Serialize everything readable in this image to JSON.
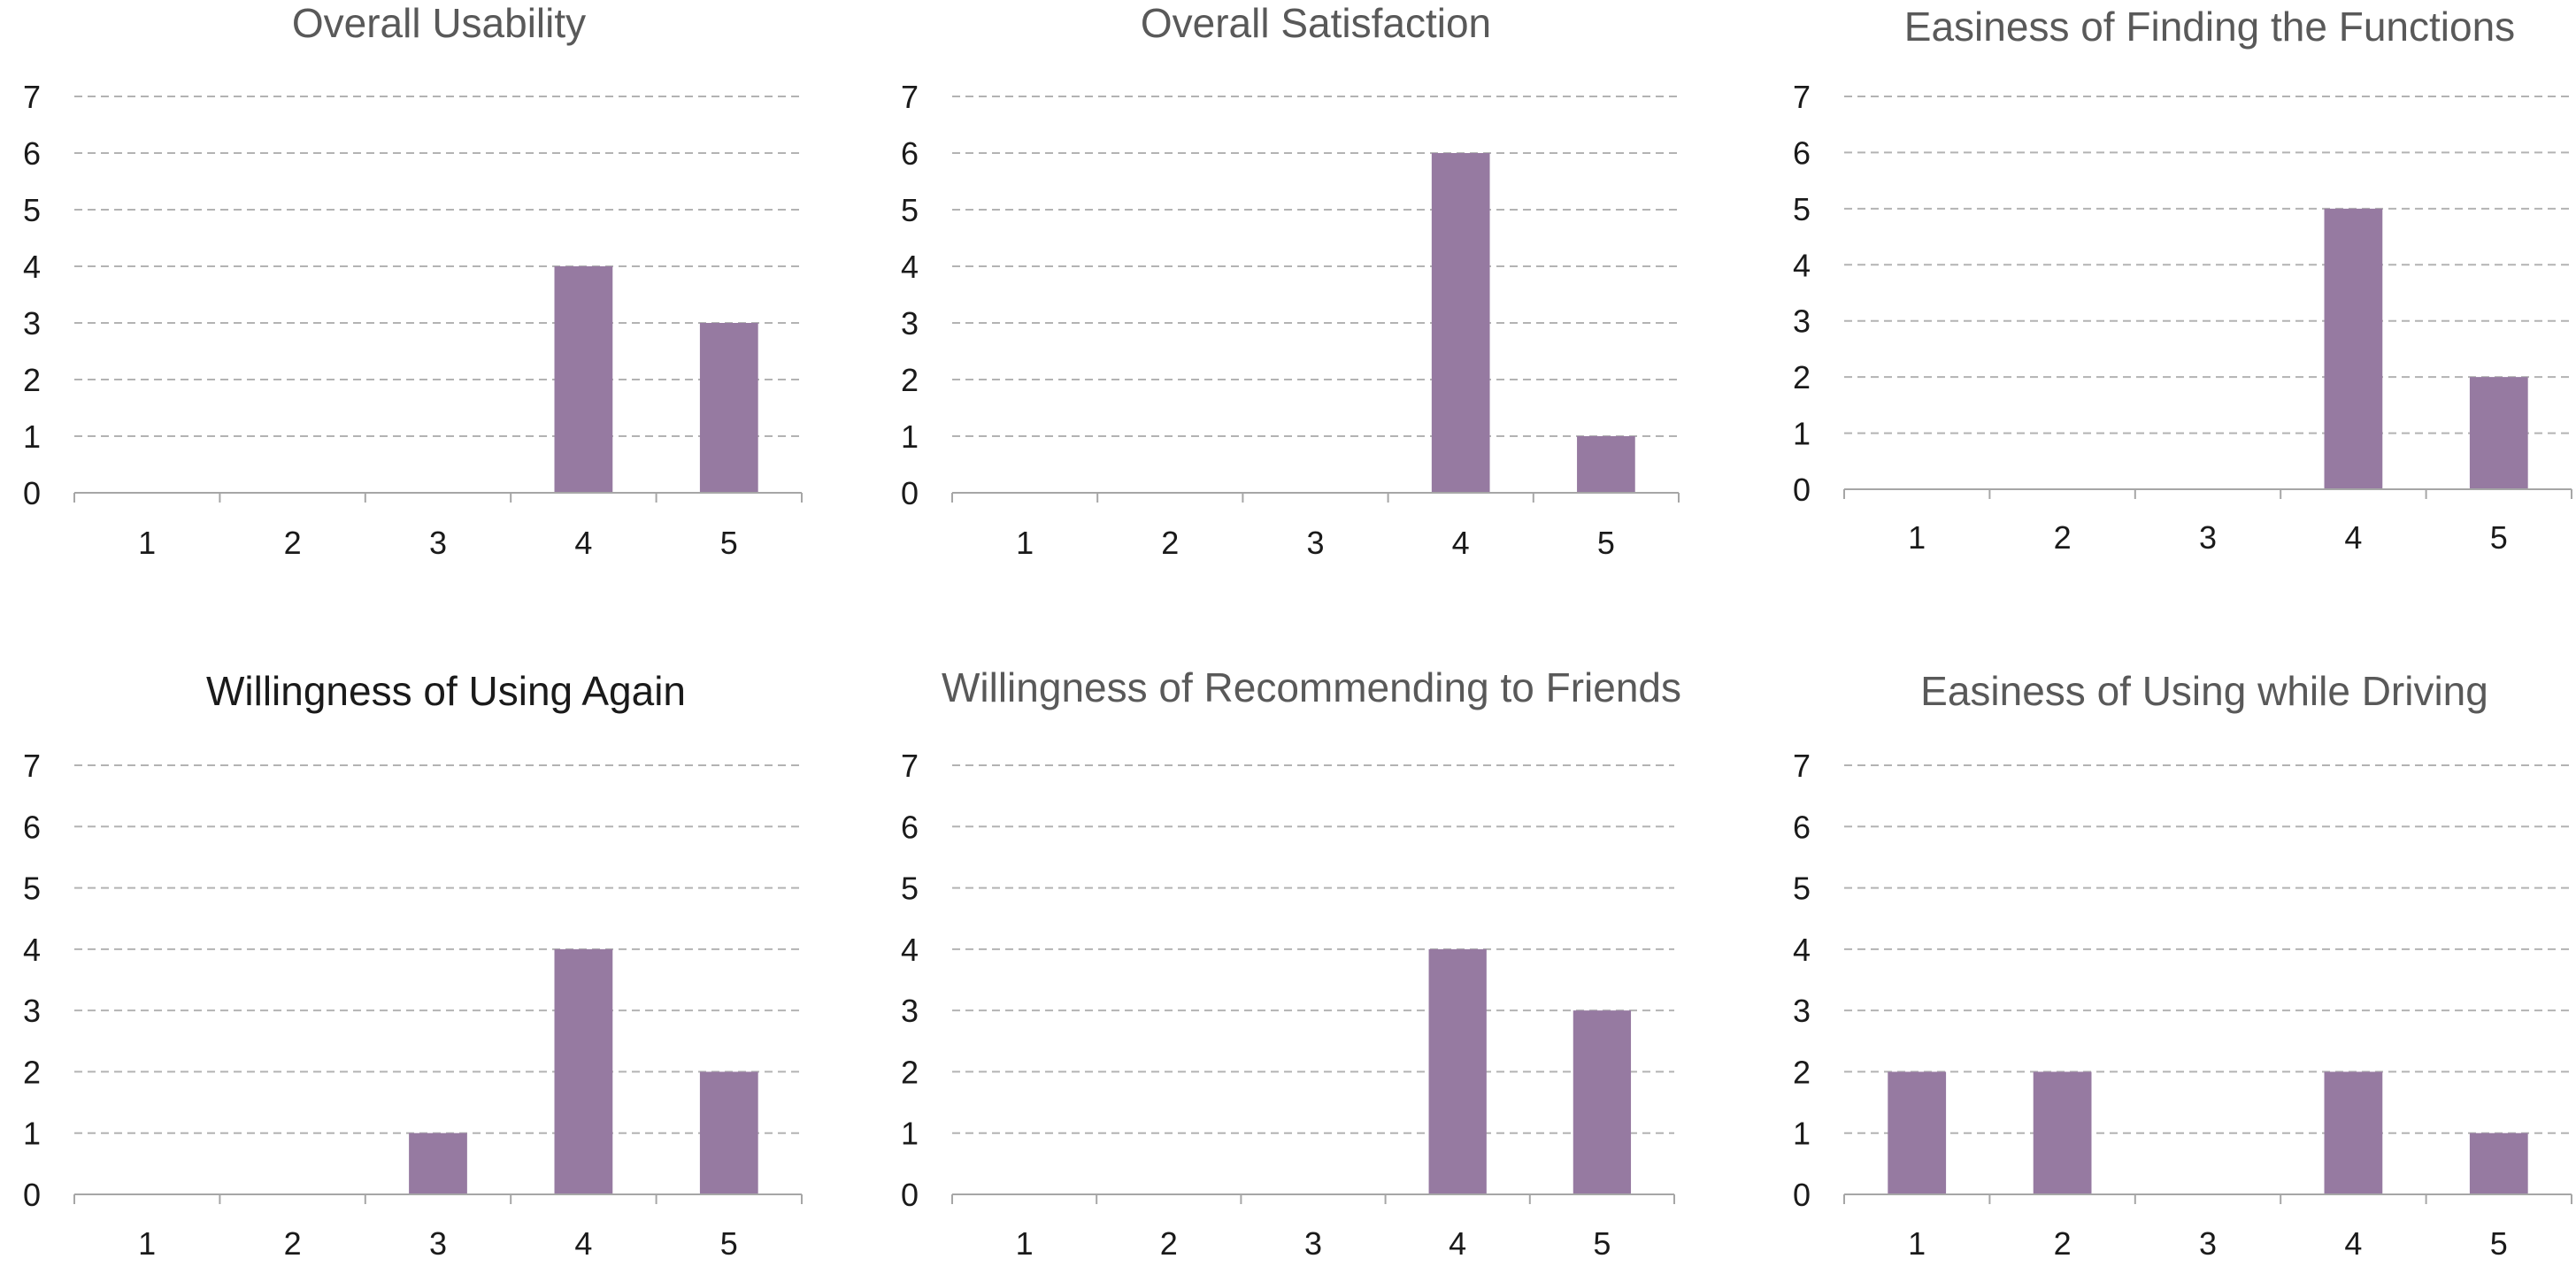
{
  "colors": {
    "bar": "#967aa1",
    "gridline": "#b3b3b3",
    "axis": "#a6a6a6",
    "title": "#595959",
    "title_emphasis": "#1a1a1a",
    "tick_text": "#1a1a1a"
  },
  "chart_data": [
    {
      "type": "bar",
      "title": "Overall Usability",
      "xlabel": "",
      "ylabel": "",
      "categories": [
        "1",
        "2",
        "3",
        "4",
        "5"
      ],
      "values": [
        0,
        0,
        0,
        4,
        3
      ],
      "y_ticks": [
        "0",
        "1",
        "2",
        "3",
        "4",
        "5",
        "6",
        "7"
      ],
      "ylim": [
        0,
        7
      ],
      "grid": true,
      "grid_style": "dashed",
      "legend": "none"
    },
    {
      "type": "bar",
      "title": "Overall Satisfaction",
      "xlabel": "",
      "ylabel": "",
      "categories": [
        "1",
        "2",
        "3",
        "4",
        "5"
      ],
      "values": [
        0,
        0,
        0,
        6,
        1
      ],
      "y_ticks": [
        "0",
        "1",
        "2",
        "3",
        "4",
        "5",
        "6",
        "7"
      ],
      "ylim": [
        0,
        7
      ],
      "grid": true,
      "grid_style": "dashed",
      "legend": "none"
    },
    {
      "type": "bar",
      "title": "Easiness of Finding the Functions",
      "xlabel": "",
      "ylabel": "",
      "categories": [
        "1",
        "2",
        "3",
        "4",
        "5"
      ],
      "values": [
        0,
        0,
        0,
        5,
        2
      ],
      "y_ticks": [
        "0",
        "1",
        "2",
        "3",
        "4",
        "5",
        "6",
        "7"
      ],
      "ylim": [
        0,
        7
      ],
      "grid": true,
      "grid_style": "dashed",
      "legend": "none"
    },
    {
      "type": "bar",
      "title": "Willingness of Using Again",
      "xlabel": "",
      "ylabel": "",
      "categories": [
        "1",
        "2",
        "3",
        "4",
        "5"
      ],
      "values": [
        0,
        0,
        1,
        4,
        2
      ],
      "y_ticks": [
        "0",
        "1",
        "2",
        "3",
        "4",
        "5",
        "6",
        "7"
      ],
      "ylim": [
        0,
        7
      ],
      "grid": true,
      "grid_style": "dashed",
      "legend": "none"
    },
    {
      "type": "bar",
      "title": "Willingness of Recommending to Friends",
      "xlabel": "",
      "ylabel": "",
      "categories": [
        "1",
        "2",
        "3",
        "4",
        "5"
      ],
      "values": [
        0,
        0,
        0,
        4,
        3
      ],
      "y_ticks": [
        "0",
        "1",
        "2",
        "3",
        "4",
        "5",
        "6",
        "7"
      ],
      "ylim": [
        0,
        7
      ],
      "grid": true,
      "grid_style": "dashed",
      "legend": "none"
    },
    {
      "type": "bar",
      "title": "Easiness of Using while Driving",
      "xlabel": "",
      "ylabel": "",
      "categories": [
        "1",
        "2",
        "3",
        "4",
        "5"
      ],
      "values": [
        2,
        2,
        0,
        2,
        1
      ],
      "y_ticks": [
        "0",
        "1",
        "2",
        "3",
        "4",
        "5",
        "6",
        "7"
      ],
      "ylim": [
        0,
        7
      ],
      "grid": true,
      "grid_style": "dashed",
      "legend": "none"
    }
  ]
}
